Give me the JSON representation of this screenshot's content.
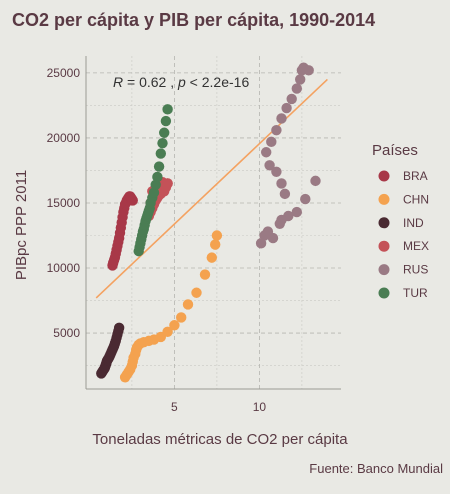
{
  "chart_data": {
    "type": "scatter",
    "title": "CO2 per cápita y PIB per cápita, 1990-2014",
    "xlabel": "Toneladas métricas de CO2 per cápita",
    "ylabel": "PIBpc PPP 2011",
    "xlim": [
      -0.2,
      14.8
    ],
    "ylim": [
      700,
      26300
    ],
    "xticks": [
      5,
      10
    ],
    "yticks": [
      5000,
      10000,
      15000,
      20000,
      25000
    ],
    "x_tick_labels": [
      "5",
      "10"
    ],
    "y_tick_labels": [
      "5000",
      "10000",
      "15000",
      "20000",
      "25000"
    ],
    "grid": true,
    "annotation": {
      "r_part": "R",
      "eq_part": " = 0.62 , ",
      "p_part": "p",
      "rest_part": " < 2.2e-16",
      "position": "top-left"
    },
    "trend_line": {
      "x": [
        0.4,
        14.0
      ],
      "y": [
        7700,
        24500
      ],
      "color": "#f4a261"
    },
    "legend": {
      "title": "Países",
      "position": "right"
    },
    "caption": "Fuente: Banco Mundial",
    "series": [
      {
        "name": "BRA",
        "color": "#a83848",
        "x": [
          1.36,
          1.4,
          1.45,
          1.5,
          1.55,
          1.6,
          1.65,
          1.7,
          1.75,
          1.8,
          1.85,
          1.9,
          1.95,
          2.0,
          2.05,
          2.1,
          2.15,
          2.2,
          2.25,
          2.3,
          2.35,
          2.4,
          2.45,
          2.5,
          2.55
        ],
        "y": [
          10200,
          10400,
          10600,
          10800,
          11100,
          11400,
          11700,
          12000,
          12300,
          12700,
          13100,
          13500,
          13900,
          14300,
          14600,
          14900,
          15000,
          15200,
          15300,
          15400,
          15500,
          15500,
          15400,
          15300,
          15200
        ]
      },
      {
        "name": "CHN",
        "color": "#f4a24f",
        "x": [
          2.1,
          2.2,
          2.3,
          2.4,
          2.5,
          2.55,
          2.6,
          2.7,
          2.75,
          2.8,
          2.9,
          3.0,
          3.2,
          3.5,
          3.8,
          4.2,
          4.6,
          5.0,
          5.4,
          5.8,
          6.3,
          6.8,
          7.2,
          7.4,
          7.5
        ],
        "y": [
          1600,
          1800,
          2000,
          2200,
          2500,
          2800,
          3100,
          3400,
          3700,
          3900,
          4100,
          4200,
          4300,
          4400,
          4500,
          4700,
          5100,
          5600,
          6200,
          7200,
          8100,
          9500,
          10800,
          11800,
          12500
        ]
      },
      {
        "name": "IND",
        "color": "#4a2a32",
        "x": [
          0.7,
          0.75,
          0.8,
          0.85,
          0.9,
          0.92,
          0.95,
          0.98,
          1.0,
          1.02,
          1.05,
          1.1,
          1.15,
          1.2,
          1.25,
          1.3,
          1.35,
          1.4,
          1.45,
          1.5,
          1.55,
          1.6,
          1.65,
          1.7,
          1.75
        ],
        "y": [
          1900,
          2000,
          2100,
          2200,
          2300,
          2400,
          2500,
          2600,
          2700,
          2800,
          2900,
          3000,
          3100,
          3250,
          3400,
          3550,
          3700,
          3850,
          4000,
          4200,
          4400,
          4650,
          4900,
          5150,
          5400
        ]
      },
      {
        "name": "MEX",
        "color": "#c45258",
        "x": [
          3.5,
          3.6,
          3.7,
          3.8,
          3.9,
          4.0,
          4.1,
          4.2,
          3.6,
          3.8,
          4.0,
          4.2,
          4.4,
          4.5,
          4.6,
          4.3,
          4.1,
          3.9,
          3.7,
          3.8,
          4.0,
          4.2,
          4.4,
          4.5,
          4.6
        ],
        "y": [
          14000,
          14300,
          14600,
          14900,
          15200,
          15400,
          15600,
          15800,
          15000,
          15300,
          15600,
          15900,
          16100,
          16300,
          16500,
          16600,
          16400,
          16200,
          15900,
          15700,
          15500,
          15700,
          15900,
          16200,
          16500
        ]
      },
      {
        "name": "RUS",
        "color": "#9a7a84",
        "x": [
          10.1,
          10.3,
          10.5,
          10.8,
          11.2,
          11.5,
          11.3,
          11.0,
          10.6,
          10.4,
          10.7,
          11.0,
          11.3,
          11.6,
          11.9,
          12.2,
          12.4,
          12.5,
          12.6,
          12.9,
          13.3,
          12.7,
          12.2,
          11.7,
          11.3
        ],
        "y": [
          11900,
          12500,
          12800,
          12300,
          13400,
          15700,
          16500,
          17400,
          17900,
          18900,
          19700,
          20600,
          21500,
          22300,
          23000,
          23800,
          24500,
          25200,
          25400,
          25200,
          16700,
          15300,
          14300,
          14000,
          13700
        ]
      },
      {
        "name": "TUR",
        "color": "#4a7d53",
        "x": [
          2.9,
          2.95,
          3.0,
          3.05,
          3.1,
          3.15,
          3.2,
          3.25,
          3.3,
          3.35,
          3.4,
          3.45,
          3.5,
          3.55,
          3.6,
          3.7,
          3.8,
          3.9,
          4.0,
          4.1,
          4.2,
          4.3,
          4.4,
          4.5,
          4.6
        ],
        "y": [
          11300,
          11600,
          11900,
          12200,
          12500,
          12800,
          13000,
          13300,
          13600,
          13800,
          14000,
          14200,
          14400,
          14600,
          15000,
          15400,
          15800,
          16400,
          17000,
          17800,
          18800,
          19600,
          20400,
          21300,
          22200
        ]
      }
    ]
  }
}
